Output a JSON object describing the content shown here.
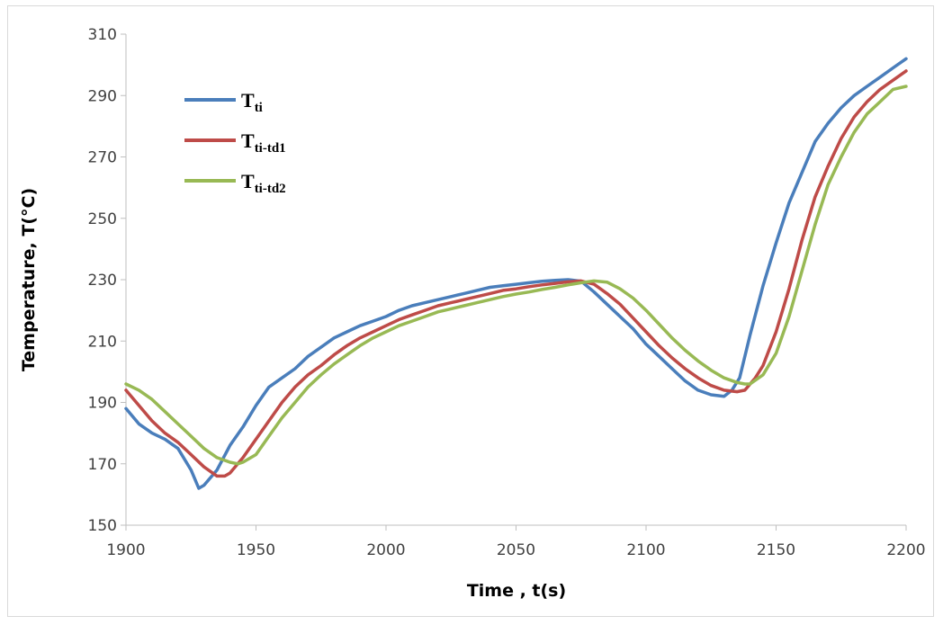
{
  "chart_data": {
    "type": "line",
    "title": "",
    "xlabel": "Time , t(s)",
    "ylabel": "Temperature, T(°C)",
    "xlim": [
      1900,
      2200
    ],
    "ylim": [
      150,
      310
    ],
    "xticks": [
      1900,
      1950,
      2000,
      2050,
      2100,
      2150,
      2200
    ],
    "yticks": [
      150,
      170,
      190,
      210,
      230,
      250,
      270,
      290,
      310
    ],
    "grid": false,
    "legend_position": "top-left",
    "series": [
      {
        "name": "Tti",
        "label_main": "T",
        "label_sub": "ti",
        "color": "#4a7ebb",
        "x": [
          1900,
          1905,
          1910,
          1915,
          1920,
          1925,
          1928,
          1930,
          1935,
          1940,
          1945,
          1950,
          1955,
          1960,
          1965,
          1970,
          1975,
          1980,
          1985,
          1990,
          1995,
          2000,
          2005,
          2010,
          2015,
          2020,
          2025,
          2030,
          2035,
          2040,
          2045,
          2050,
          2055,
          2060,
          2065,
          2070,
          2075,
          2080,
          2085,
          2090,
          2095,
          2100,
          2105,
          2110,
          2115,
          2120,
          2125,
          2130,
          2133,
          2136,
          2140,
          2145,
          2150,
          2155,
          2160,
          2165,
          2170,
          2175,
          2180,
          2185,
          2190,
          2195,
          2200
        ],
        "y": [
          188,
          183,
          180,
          178,
          175,
          168,
          162,
          163,
          168,
          176,
          182,
          189,
          195,
          198,
          201,
          205,
          208,
          211,
          213,
          215,
          216.5,
          218,
          220,
          221.5,
          222.5,
          223.5,
          224.5,
          225.5,
          226.5,
          227.5,
          228,
          228.5,
          229,
          229.5,
          229.8,
          230,
          229.5,
          226,
          222,
          218,
          214,
          209,
          205,
          201,
          197,
          194,
          192.5,
          192,
          194,
          198,
          212,
          228,
          242,
          255,
          265,
          275,
          281,
          286,
          290,
          293,
          296,
          299,
          302
        ]
      },
      {
        "name": "Tti-td1",
        "label_main": "T",
        "label_sub": "ti-td1",
        "color": "#be4b48",
        "x": [
          1900,
          1905,
          1910,
          1915,
          1920,
          1925,
          1930,
          1935,
          1938,
          1940,
          1945,
          1950,
          1955,
          1960,
          1965,
          1970,
          1975,
          1980,
          1985,
          1990,
          1995,
          2000,
          2005,
          2010,
          2015,
          2020,
          2025,
          2030,
          2035,
          2040,
          2045,
          2050,
          2055,
          2060,
          2065,
          2070,
          2075,
          2080,
          2085,
          2090,
          2095,
          2100,
          2105,
          2110,
          2115,
          2120,
          2125,
          2130,
          2135,
          2138,
          2142,
          2145,
          2150,
          2155,
          2160,
          2165,
          2170,
          2175,
          2180,
          2185,
          2190,
          2195,
          2200
        ],
        "y": [
          194,
          189,
          184,
          180,
          177,
          173,
          169,
          166,
          166,
          167,
          172,
          178,
          184,
          190,
          195,
          199,
          202,
          205.5,
          208.5,
          211,
          213,
          215,
          217,
          218.5,
          220,
          221.5,
          222.5,
          223.5,
          224.5,
          225.5,
          226.5,
          227,
          227.7,
          228.3,
          228.8,
          229.3,
          229.6,
          228.5,
          225.5,
          222,
          217.5,
          213,
          208.5,
          204.5,
          201,
          198,
          195.5,
          194,
          193.5,
          194,
          198,
          202,
          213,
          227,
          243,
          257,
          267,
          276,
          283,
          288,
          292,
          295,
          298
        ]
      },
      {
        "name": "Tti-td2",
        "label_main": "T",
        "label_sub": "ti-td2",
        "color": "#98b954",
        "x": [
          1900,
          1905,
          1910,
          1915,
          1920,
          1925,
          1930,
          1935,
          1940,
          1943,
          1945,
          1950,
          1955,
          1960,
          1965,
          1970,
          1975,
          1980,
          1985,
          1990,
          1995,
          2000,
          2005,
          2010,
          2015,
          2020,
          2025,
          2030,
          2035,
          2040,
          2045,
          2050,
          2055,
          2060,
          2065,
          2070,
          2075,
          2080,
          2085,
          2090,
          2095,
          2100,
          2105,
          2110,
          2115,
          2120,
          2125,
          2130,
          2135,
          2138,
          2140,
          2145,
          2150,
          2155,
          2160,
          2165,
          2170,
          2175,
          2180,
          2185,
          2190,
          2195,
          2200
        ],
        "y": [
          196,
          194,
          191,
          187,
          183,
          179,
          175,
          172,
          170.5,
          170,
          170.5,
          173,
          179,
          185,
          190,
          195,
          199,
          202.5,
          205.5,
          208.5,
          211,
          213,
          215,
          216.5,
          218,
          219.5,
          220.5,
          221.5,
          222.5,
          223.5,
          224.5,
          225.3,
          226,
          226.8,
          227.5,
          228.3,
          229,
          229.6,
          229.2,
          227,
          224,
          220,
          215.5,
          211,
          207,
          203.5,
          200.5,
          198,
          196.5,
          196,
          196,
          199,
          206,
          218,
          233,
          248,
          261,
          270,
          278,
          284,
          288,
          292,
          293
        ]
      }
    ]
  }
}
